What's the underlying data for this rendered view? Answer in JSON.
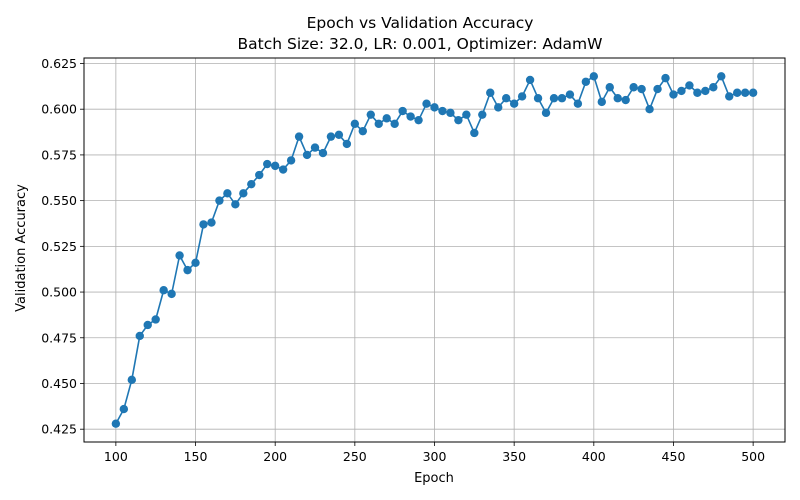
{
  "chart_data": {
    "type": "line",
    "title": "Epoch vs Validation Accuracy",
    "subtitle": "Batch Size: 32.0, LR: 0.001, Optimizer: AdamW",
    "xlabel": "Epoch",
    "ylabel": "Validation Accuracy",
    "xlim": [
      80,
      520
    ],
    "ylim": [
      0.418,
      0.628
    ],
    "xticks": [
      100,
      150,
      200,
      250,
      300,
      350,
      400,
      450,
      500
    ],
    "xtick_labels": [
      "100",
      "150",
      "200",
      "250",
      "300",
      "350",
      "400",
      "450",
      "500"
    ],
    "yticks": [
      0.425,
      0.45,
      0.475,
      0.5,
      0.525,
      0.55,
      0.575,
      0.6,
      0.625
    ],
    "ytick_labels": [
      "0.425",
      "0.450",
      "0.475",
      "0.500",
      "0.525",
      "0.550",
      "0.575",
      "0.600",
      "0.625"
    ],
    "grid": true,
    "color": "#1f77b4",
    "marker": "circle",
    "x": [
      100,
      105,
      110,
      115,
      120,
      125,
      130,
      135,
      140,
      145,
      150,
      155,
      160,
      165,
      170,
      175,
      180,
      185,
      190,
      195,
      200,
      205,
      210,
      215,
      220,
      225,
      230,
      235,
      240,
      245,
      250,
      255,
      260,
      265,
      270,
      275,
      280,
      285,
      290,
      295,
      300,
      305,
      310,
      315,
      320,
      325,
      330,
      335,
      340,
      345,
      350,
      355,
      360,
      365,
      370,
      375,
      380,
      385,
      390,
      395,
      400,
      405,
      410,
      415,
      420,
      425,
      430,
      435,
      440,
      445,
      450,
      455,
      460,
      465,
      470,
      475,
      480,
      485,
      490,
      495,
      500
    ],
    "y": [
      0.428,
      0.436,
      0.452,
      0.476,
      0.482,
      0.485,
      0.501,
      0.499,
      0.52,
      0.512,
      0.516,
      0.537,
      0.538,
      0.55,
      0.554,
      0.548,
      0.554,
      0.559,
      0.564,
      0.57,
      0.569,
      0.567,
      0.572,
      0.585,
      0.575,
      0.579,
      0.576,
      0.585,
      0.586,
      0.581,
      0.592,
      0.588,
      0.597,
      0.592,
      0.595,
      0.592,
      0.599,
      0.596,
      0.594,
      0.603,
      0.601,
      0.599,
      0.598,
      0.594,
      0.597,
      0.587,
      0.597,
      0.609,
      0.601,
      0.606,
      0.603,
      0.607,
      0.616,
      0.606,
      0.598,
      0.606,
      0.606,
      0.608,
      0.603,
      0.615,
      0.618,
      0.604,
      0.612,
      0.606,
      0.605,
      0.612,
      0.611,
      0.6,
      0.611,
      0.617,
      0.608,
      0.61,
      0.613,
      0.609,
      0.61,
      0.612,
      0.618,
      0.607,
      0.609,
      0.609,
      0.609
    ]
  }
}
